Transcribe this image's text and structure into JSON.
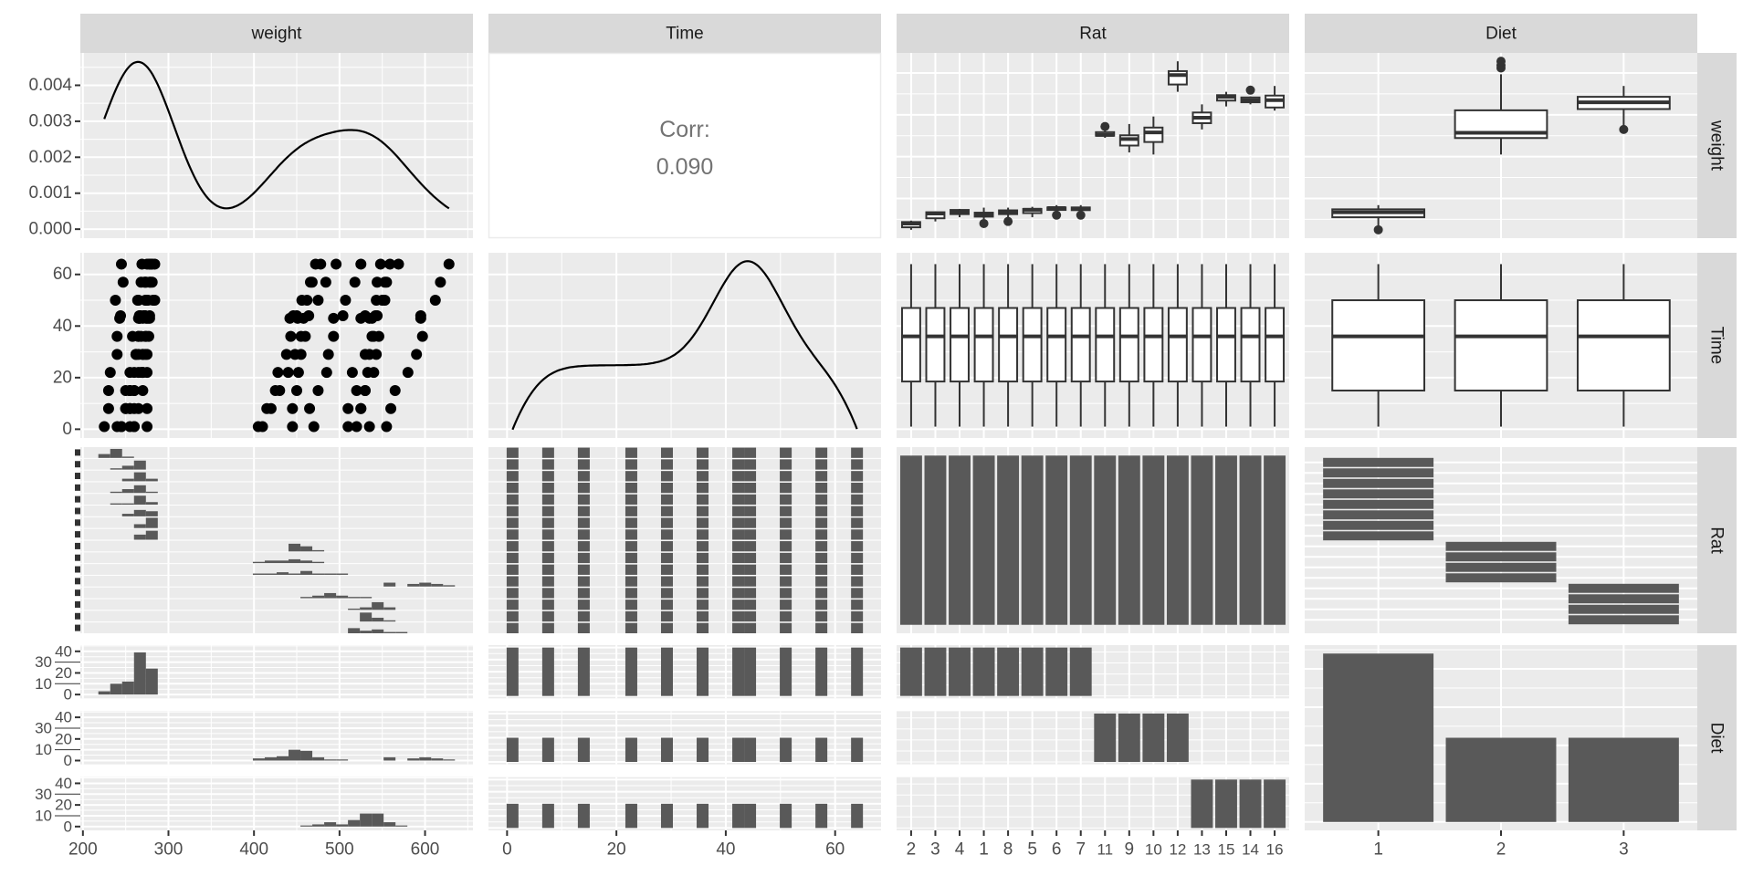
{
  "chart_data": {
    "type": "pairs",
    "variables": [
      "weight",
      "Time",
      "Rat",
      "Diet"
    ],
    "strips": {
      "columns": [
        "weight",
        "Time",
        "Rat",
        "Diet"
      ],
      "rows": [
        "weight",
        "Time",
        "Rat",
        "Diet"
      ]
    },
    "correlation": {
      "label": "Corr:",
      "value": "0.090"
    },
    "times": [
      1,
      8,
      15,
      22,
      29,
      36,
      43,
      44,
      50,
      57,
      64
    ],
    "rat_order": [
      "2",
      "3",
      "4",
      "1",
      "8",
      "5",
      "6",
      "7",
      "11",
      "9",
      "10",
      "12",
      "13",
      "15",
      "14",
      "16"
    ],
    "diets": [
      "1",
      "2",
      "3"
    ],
    "rats": [
      {
        "rat": "1",
        "diet": "1",
        "weight": [
          240,
          250,
          255,
          260,
          262,
          258,
          266,
          266,
          265,
          272,
          278
        ]
      },
      {
        "rat": "2",
        "diet": "1",
        "weight": [
          225,
          230,
          230,
          232,
          240,
          240,
          243,
          244,
          238,
          247,
          245
        ]
      },
      {
        "rat": "3",
        "diet": "1",
        "weight": [
          245,
          250,
          250,
          255,
          262,
          265,
          267,
          267,
          264,
          268,
          269
        ]
      },
      {
        "rat": "4",
        "diet": "1",
        "weight": [
          260,
          255,
          255,
          265,
          265,
          268,
          270,
          272,
          274,
          273,
          275
        ]
      },
      {
        "rat": "5",
        "diet": "1",
        "weight": [
          255,
          260,
          255,
          270,
          270,
          273,
          274,
          273,
          276,
          278,
          280
        ]
      },
      {
        "rat": "6",
        "diet": "1",
        "weight": [
          260,
          265,
          270,
          275,
          275,
          277,
          278,
          278,
          284,
          279,
          281
        ]
      },
      {
        "rat": "7",
        "diet": "1",
        "weight": [
          275,
          275,
          260,
          270,
          273,
          274,
          276,
          271,
          282,
          281,
          284
        ]
      },
      {
        "rat": "8",
        "diet": "1",
        "weight": [
          245,
          255,
          260,
          268,
          270,
          265,
          265,
          267,
          273,
          274,
          278
        ]
      },
      {
        "rat": "9",
        "diet": "2",
        "weight": [
          410,
          415,
          425,
          428,
          438,
          443,
          442,
          446,
          456,
          468,
          478
        ]
      },
      {
        "rat": "10",
        "diet": "2",
        "weight": [
          405,
          420,
          430,
          440,
          448,
          460,
          458,
          464,
          475,
          484,
          496
        ]
      },
      {
        "rat": "11",
        "diet": "2",
        "weight": [
          445,
          445,
          450,
          452,
          455,
          455,
          451,
          450,
          462,
          466,
          472
        ]
      },
      {
        "rat": "12",
        "diet": "2",
        "weight": [
          555,
          560,
          565,
          580,
          590,
          597,
          595,
          595,
          612,
          618,
          628
        ]
      },
      {
        "rat": "13",
        "diet": "3",
        "weight": [
          470,
          465,
          475,
          485,
          487,
          493,
          493,
          504,
          507,
          518,
          525
        ]
      },
      {
        "rat": "14",
        "diet": "3",
        "weight": [
          535,
          525,
          530,
          533,
          535,
          540,
          525,
          530,
          543,
          544,
          559
        ]
      },
      {
        "rat": "15",
        "diet": "3",
        "weight": [
          520,
          525,
          530,
          540,
          543,
          546,
          538,
          544,
          553,
          555,
          548
        ]
      },
      {
        "rat": "16",
        "diet": "3",
        "weight": [
          510,
          510,
          520,
          515,
          530,
          538,
          535,
          542,
          550,
          553,
          569
        ]
      }
    ],
    "axes": {
      "weight_range": [
        197,
        656
      ],
      "weight_ticks": [
        200,
        300,
        400,
        500,
        600
      ],
      "weight_labels": [
        "200",
        "300",
        "400",
        "500",
        "600"
      ],
      "weight_y_range": [
        205,
        648
      ],
      "time_range": [
        -3.4,
        68.4
      ],
      "time_ticks": [
        0,
        20,
        40,
        60
      ],
      "time_labels": [
        "0",
        "20",
        "40",
        "60"
      ],
      "density_range": [
        -0.00025,
        0.0049
      ],
      "density_ticks": [
        0,
        0.001,
        0.002,
        0.003,
        0.004
      ],
      "density_labels": [
        "0.000",
        "0.001",
        "0.002",
        "0.003",
        "0.004"
      ],
      "count_range": [
        -1,
        41.5
      ],
      "count_ticks": [
        0,
        10,
        20,
        30,
        40
      ],
      "count_labels": [
        "0",
        "10",
        "20",
        "30",
        "40"
      ]
    },
    "bins": 30,
    "colors": {
      "panel": "#EBEBEB",
      "grid": "#FFFFFF",
      "strip": "#D9D9D9",
      "bar": "#595959",
      "line": "#000000",
      "box": "#333333",
      "axis_text": "#4D4D4D",
      "corr_text": "#737373"
    }
  }
}
